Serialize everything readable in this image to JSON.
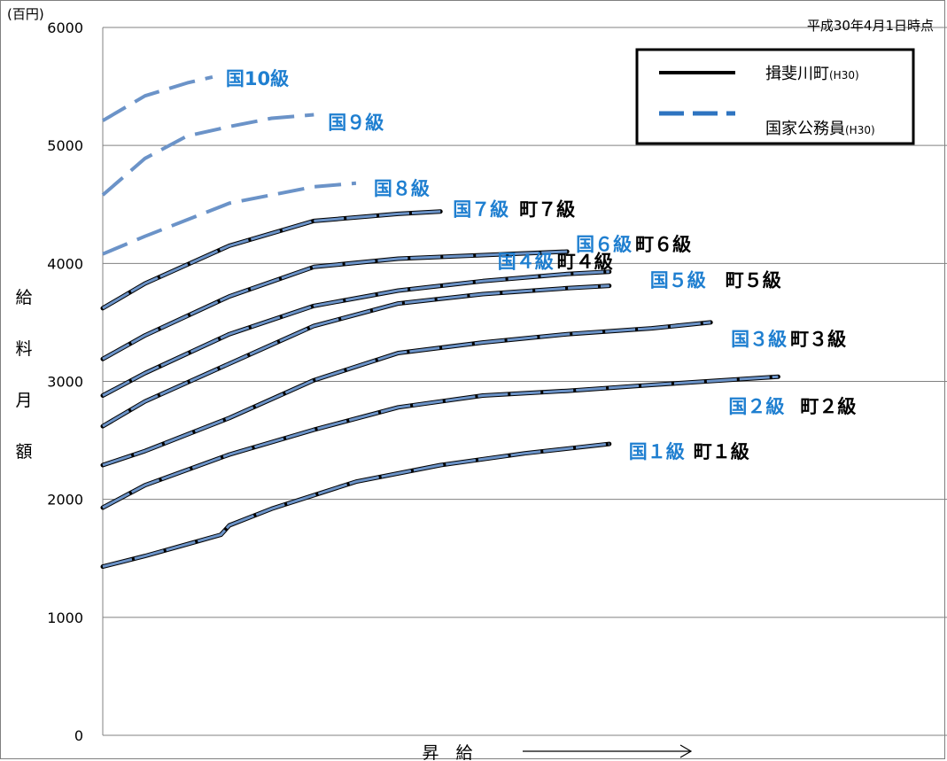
{
  "chart_data": {
    "type": "line",
    "title": "",
    "date_note": "平成30年4月1日時点",
    "unit_label": "(百円)",
    "ylabel": "給料月額",
    "xlabel": "昇　給",
    "ylim": [
      0,
      6000
    ],
    "xlim": [
      0,
      100
    ],
    "yticks": [
      "0",
      "1000",
      "2000",
      "3000",
      "4000",
      "5000",
      "6000"
    ],
    "yticks_values": [
      0,
      1000,
      2000,
      3000,
      4000,
      5000,
      6000
    ],
    "grid": true,
    "legend_position": "top-right",
    "legend": [
      {
        "label": "揖斐川町",
        "suffix": "(H30)",
        "style": "solid",
        "color": "#000000"
      },
      {
        "label": "国家公務員",
        "suffix": "(H30)",
        "style": "dashed",
        "color": "#2e74c0"
      }
    ],
    "series": [
      {
        "grade": 1,
        "kuni_label": "国１級",
        "town_label": "町１級",
        "x": [
          0,
          5,
          10,
          14,
          15,
          20,
          30,
          40,
          50,
          60
        ],
        "y": [
          1430,
          1520,
          1620,
          1700,
          1780,
          1920,
          2150,
          2290,
          2390,
          2470
        ]
      },
      {
        "grade": 2,
        "kuni_label": "国２級",
        "town_label": "町２級",
        "x": [
          0,
          5,
          15,
          25,
          35,
          45,
          55,
          65,
          80
        ],
        "y": [
          1930,
          2120,
          2380,
          2590,
          2780,
          2880,
          2920,
          2970,
          3040
        ]
      },
      {
        "grade": 3,
        "kuni_label": "国３級",
        "town_label": "町３級",
        "x": [
          0,
          5,
          15,
          25,
          35,
          45,
          55,
          65,
          72
        ],
        "y": [
          2290,
          2410,
          2690,
          3010,
          3240,
          3330,
          3400,
          3450,
          3500
        ]
      },
      {
        "grade": 4,
        "kuni_label": "国４級",
        "town_label": "町４級",
        "x": [
          0,
          5,
          15,
          25,
          35,
          45,
          55,
          60
        ],
        "y": [
          2620,
          2830,
          3150,
          3470,
          3660,
          3740,
          3790,
          3810
        ]
      },
      {
        "grade": 5,
        "kuni_label": "国５級",
        "town_label": "町５級",
        "x": [
          0,
          5,
          15,
          25,
          35,
          45,
          55,
          60
        ],
        "y": [
          2880,
          3070,
          3400,
          3640,
          3770,
          3850,
          3910,
          3930
        ]
      },
      {
        "grade": 6,
        "kuni_label": "国６級",
        "town_label": "町６級",
        "x": [
          0,
          5,
          15,
          25,
          35,
          45,
          55
        ],
        "y": [
          3190,
          3390,
          3720,
          3970,
          4040,
          4070,
          4100
        ]
      },
      {
        "grade": 7,
        "kuni_label": "国７級",
        "town_label": "町７級",
        "x": [
          0,
          5,
          15,
          25,
          35,
          40
        ],
        "y": [
          3620,
          3830,
          4150,
          4360,
          4420,
          4440
        ]
      },
      {
        "grade": 8,
        "kuni_label": "国８級",
        "town_label": "",
        "x": [
          0,
          5,
          15,
          25,
          30
        ],
        "y": [
          4080,
          4230,
          4510,
          4650,
          4680
        ]
      },
      {
        "grade": 9,
        "kuni_label": "国９級",
        "town_label": "",
        "x": [
          0,
          5,
          10,
          15,
          20,
          25
        ],
        "y": [
          4580,
          4890,
          5080,
          5160,
          5230,
          5260
        ]
      },
      {
        "grade": 10,
        "kuni_label": "国10級",
        "town_label": "",
        "x": [
          0,
          5,
          10,
          13
        ],
        "y": [
          5210,
          5420,
          5530,
          5580
        ]
      }
    ]
  }
}
